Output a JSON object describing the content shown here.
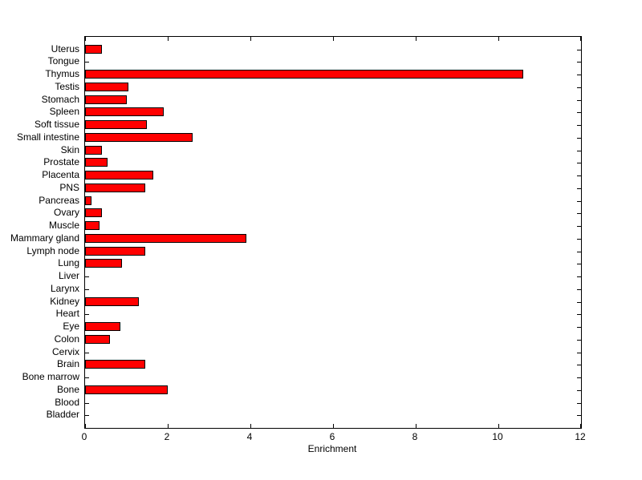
{
  "chart_data": {
    "type": "bar",
    "orientation": "horizontal",
    "xlabel": "Enrichment",
    "xlim": [
      0,
      12
    ],
    "x_ticks": [
      0,
      2,
      4,
      6,
      8,
      10,
      12
    ],
    "grid": false,
    "legend": false,
    "bar_color": "#FF0000",
    "bar_border_color": "#000000",
    "background_color": "#FFFFFF",
    "categories": [
      "Uterus",
      "Tongue",
      "Thymus",
      "Testis",
      "Stomach",
      "Spleen",
      "Soft tissue",
      "Small intestine",
      "Skin",
      "Prostate",
      "Placenta",
      "PNS",
      "Pancreas",
      "Ovary",
      "Muscle",
      "Mammary gland",
      "Lymph node",
      "Lung",
      "Liver",
      "Larynx",
      "Kidney",
      "Heart",
      "Eye",
      "Colon",
      "Cervix",
      "Brain",
      "Bone marrow",
      "Bone",
      "Blood",
      "Bladder"
    ],
    "values": [
      0.4,
      0,
      10.6,
      1.05,
      1.0,
      1.9,
      1.5,
      2.6,
      0.4,
      0.55,
      1.65,
      1.45,
      0.15,
      0.4,
      0.35,
      3.9,
      1.45,
      0.9,
      0,
      0,
      1.3,
      0,
      0.85,
      0.6,
      0,
      1.45,
      0,
      2.0,
      0,
      0
    ]
  }
}
